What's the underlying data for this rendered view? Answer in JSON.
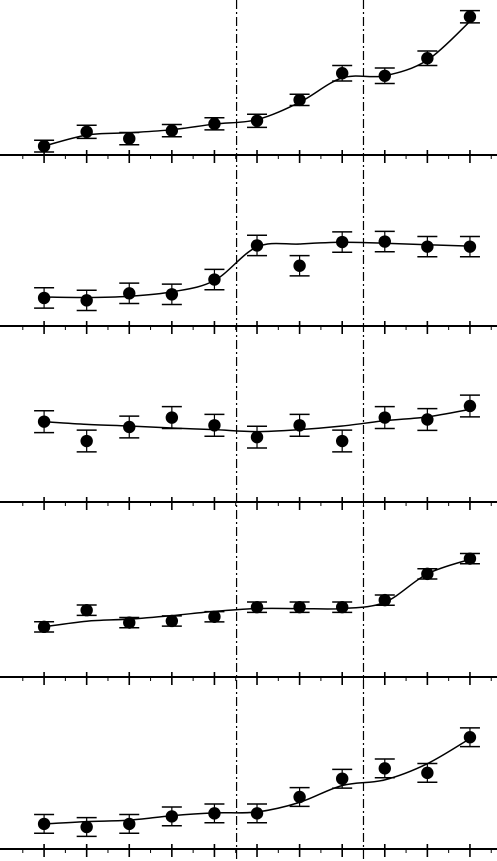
{
  "chart_data": [
    {
      "type": "scatter",
      "panel": 1,
      "x": [
        1,
        2,
        3,
        4,
        5,
        6,
        7,
        8,
        9,
        10,
        11
      ],
      "y": [
        0.38,
        0.99,
        0.7,
        1.04,
        1.33,
        1.46,
        2.35,
        3.49,
        3.38,
        4.13,
        5.9
      ],
      "err": [
        0.25,
        0.28,
        0.26,
        0.26,
        0.26,
        0.28,
        0.24,
        0.33,
        0.33,
        0.31,
        0.26
      ],
      "fit": [
        0.38,
        0.85,
        0.95,
        1.08,
        1.32,
        1.51,
        2.25,
        3.29,
        3.38,
        4.05,
        5.7
      ],
      "xlim": [
        0,
        11.6
      ],
      "ylim": [
        0,
        6.4
      ],
      "grid": false
    },
    {
      "type": "scatter",
      "panel": 2,
      "x": [
        1,
        2,
        3,
        4,
        5,
        6,
        7,
        8,
        9,
        10,
        11
      ],
      "y": [
        1.16,
        1.06,
        1.35,
        1.31,
        1.92,
        3.33,
        2.49,
        3.47,
        3.49,
        3.28,
        3.28
      ],
      "err": [
        0.42,
        0.42,
        0.42,
        0.42,
        0.42,
        0.42,
        0.42,
        0.42,
        0.42,
        0.42,
        0.42
      ],
      "fit": [
        1.2,
        1.18,
        1.23,
        1.41,
        1.88,
        3.27,
        3.39,
        3.46,
        3.42,
        3.36,
        3.3
      ],
      "xlim": [
        0,
        11.6
      ],
      "ylim": [
        0,
        6.2
      ],
      "grid": false
    },
    {
      "type": "scatter",
      "panel": 3,
      "x": [
        1,
        2,
        3,
        4,
        5,
        6,
        7,
        8,
        9,
        10,
        11
      ],
      "y": [
        3.32,
        2.52,
        3.1,
        3.49,
        3.17,
        2.68,
        3.17,
        2.52,
        3.49,
        3.41,
        3.97
      ],
      "err": [
        0.45,
        0.45,
        0.45,
        0.45,
        0.45,
        0.45,
        0.45,
        0.45,
        0.45,
        0.45,
        0.45
      ],
      "fit": [
        3.32,
        3.21,
        3.14,
        3.06,
        2.99,
        2.91,
        2.99,
        3.14,
        3.36,
        3.52,
        3.83
      ],
      "xlim": [
        0,
        11.6
      ],
      "ylim": [
        0,
        6.2
      ],
      "grid": false
    },
    {
      "type": "scatter",
      "panel": 4,
      "x": [
        1,
        2,
        3,
        4,
        5,
        6,
        7,
        8,
        9,
        10,
        11
      ],
      "y": [
        2.14,
        2.85,
        2.32,
        2.39,
        2.57,
        2.98,
        2.98,
        2.98,
        3.28,
        4.4,
        5.05
      ],
      "err": [
        0.22,
        0.22,
        0.22,
        0.22,
        0.22,
        0.22,
        0.22,
        0.22,
        0.22,
        0.22,
        0.22
      ],
      "fit": [
        2.14,
        2.38,
        2.47,
        2.62,
        2.8,
        2.92,
        2.92,
        2.92,
        3.19,
        4.4,
        5.02
      ],
      "xlim": [
        0,
        11.6
      ],
      "ylim": [
        0,
        6.4
      ],
      "grid": false
    },
    {
      "type": "scatter",
      "panel": 5,
      "x": [
        1,
        2,
        3,
        4,
        5,
        6,
        7,
        8,
        9,
        10,
        11
      ],
      "y": [
        1.07,
        0.94,
        1.07,
        1.39,
        1.52,
        1.52,
        2.22,
        3.0,
        3.44,
        3.25,
        4.77
      ],
      "err": [
        0.4,
        0.4,
        0.4,
        0.4,
        0.4,
        0.4,
        0.4,
        0.4,
        0.4,
        0.4,
        0.4
      ],
      "fit": [
        1.07,
        1.17,
        1.23,
        1.42,
        1.54,
        1.58,
        1.99,
        2.71,
        2.95,
        3.64,
        4.71
      ],
      "xlim": [
        0,
        11.6
      ],
      "ylim": [
        0,
        6.4
      ],
      "grid": false
    }
  ],
  "reference_lines": {
    "x": [
      5.52,
      8.5
    ],
    "style": "dash-dot"
  },
  "x_ticks": [
    1,
    2,
    3,
    4,
    5,
    6,
    7,
    8,
    9,
    10,
    11
  ]
}
